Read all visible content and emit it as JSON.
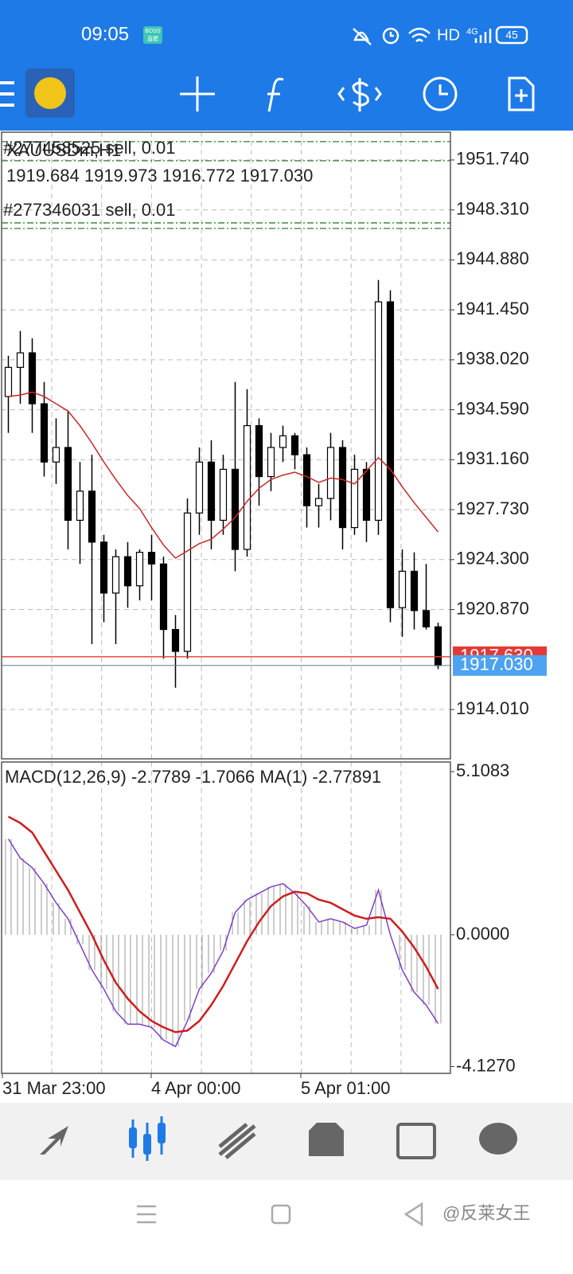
{
  "status_bar": {
    "time": "09:05",
    "badge_top": "BOSS",
    "badge_bottom": "直聘",
    "network": "HD",
    "cell": "4G",
    "battery": "45"
  },
  "chart_data": [
    {
      "type": "candlestick",
      "symbol": "XAUUSDm,H1",
      "ohlc_label": "1919.684 1919.973 1916.772 1917.030",
      "orders": [
        "#277458525 sell, 0.01",
        "#277346031 sell, 0.01"
      ],
      "order_lines": [
        1953.0,
        1951.69,
        1947.42,
        1947.04
      ],
      "order_line_color": "#2e7d32",
      "ask": {
        "value": 1917.63,
        "label": "1917.630"
      },
      "ask_color": "#e53935",
      "bid": {
        "value": 1917.03,
        "label": "1917.030"
      },
      "bid_color": "#4da3f0",
      "ylim": [
        1910.62,
        1953.65
      ],
      "yticks": [
        {
          "value": 1951.74,
          "label": "1951.740"
        },
        {
          "value": 1948.31,
          "label": "1948.310"
        },
        {
          "value": 1944.88,
          "label": "1944.880"
        },
        {
          "value": 1941.45,
          "label": "1941.450"
        },
        {
          "value": 1938.02,
          "label": "1938.020"
        },
        {
          "value": 1934.59,
          "label": "1934.590"
        },
        {
          "value": 1931.16,
          "label": "1931.160"
        },
        {
          "value": 1927.73,
          "label": "1927.730"
        },
        {
          "value": 1924.3,
          "label": "1924.300"
        },
        {
          "value": 1920.87,
          "label": "1920.870"
        },
        {
          "value": 1914.01,
          "label": "1914.010"
        }
      ],
      "grid": true,
      "candles": [
        [
          1935.5,
          1938.3,
          1933,
          1937.5
        ],
        [
          1937.5,
          1940,
          1935,
          1938.5
        ],
        [
          1938.5,
          1939.5,
          1933,
          1935
        ],
        [
          1935,
          1936.5,
          1930,
          1931
        ],
        [
          1931,
          1934,
          1929.5,
          1932
        ],
        [
          1932,
          1934.5,
          1925,
          1927
        ],
        [
          1927,
          1931,
          1924,
          1929
        ],
        [
          1929,
          1931.5,
          1918.5,
          1925.5
        ],
        [
          1925.5,
          1926,
          1920,
          1922
        ],
        [
          1922,
          1925,
          1918.5,
          1924.5
        ],
        [
          1924.5,
          1925.5,
          1921,
          1922.5
        ],
        [
          1922.5,
          1925,
          1921.5,
          1924.8
        ],
        [
          1924.8,
          1926,
          1921.5,
          1924
        ],
        [
          1924,
          1924.5,
          1917.5,
          1919.5
        ],
        [
          1919.5,
          1920.5,
          1915.5,
          1918
        ],
        [
          1918,
          1928.5,
          1917.5,
          1927.5
        ],
        [
          1927.5,
          1932,
          1926,
          1931
        ],
        [
          1931,
          1932.5,
          1925,
          1927
        ],
        [
          1927,
          1931.5,
          1926,
          1930.5
        ],
        [
          1930.5,
          1936.5,
          1923.5,
          1925
        ],
        [
          1925,
          1936,
          1924.5,
          1933.5
        ],
        [
          1933.5,
          1934,
          1928,
          1930
        ],
        [
          1930,
          1933,
          1929,
          1932
        ],
        [
          1932,
          1933.5,
          1931,
          1932.8
        ],
        [
          1932.8,
          1933,
          1930.5,
          1931.5
        ],
        [
          1931.5,
          1932,
          1926.5,
          1928
        ],
        [
          1928,
          1929.5,
          1926.5,
          1928.5
        ],
        [
          1928.5,
          1933,
          1927,
          1932
        ],
        [
          1932,
          1932.5,
          1925,
          1926.5
        ],
        [
          1926.5,
          1931.5,
          1926,
          1930.5
        ],
        [
          1930.5,
          1931,
          1925.5,
          1927
        ],
        [
          1927,
          1943.5,
          1926,
          1942
        ],
        [
          1942,
          1942.8,
          1920,
          1921
        ],
        [
          1921,
          1925,
          1919,
          1923.5
        ],
        [
          1923.5,
          1924.8,
          1919.5,
          1920.8
        ],
        [
          1920.8,
          1924,
          1919.5,
          1919.684
        ],
        [
          1919.684,
          1919.973,
          1916.772,
          1917.03
        ]
      ],
      "ma": {
        "color": "#c62828",
        "values": [
          1935.5,
          1935.6,
          1935.8,
          1935.5,
          1935,
          1934.5,
          1933.5,
          1932.3,
          1931,
          1929.8,
          1928.7,
          1927.8,
          1926.5,
          1925.3,
          1924.4,
          1924.9,
          1925.4,
          1925.7,
          1926.4,
          1927.2,
          1928.3,
          1929.2,
          1929.8,
          1930.1,
          1930.3,
          1930,
          1929.6,
          1929.9,
          1929.8,
          1929.5,
          1930.4,
          1931.3,
          1930.5,
          1929.3,
          1928.2,
          1927.2,
          1926.2
        ]
      },
      "x_labels": [
        "31 Mar 23:00",
        "4 Apr 00:00",
        "5 Apr 01:00"
      ]
    },
    {
      "type": "macd",
      "title": "MACD(12,26,9) -2.7789 -1.7066 MA(1) -2.77891",
      "ylim": [
        -4.34,
        5.41
      ],
      "yticks": [
        5.1083,
        {
          "value": 0,
          "label": "0.0000"
        },
        {
          "value": -4.127,
          "label": "-4.1270"
        }
      ],
      "series": [
        {
          "color": "#7e3fc4",
          "values": [
            3.0,
            2.4,
            2.1,
            1.6,
            1.0,
            0.5,
            -0.3,
            -1.1,
            -1.7,
            -2.4,
            -2.8,
            -2.8,
            -2.9,
            -3.3,
            -3.5,
            -2.7,
            -1.7,
            -1.2,
            -0.5,
            0.7,
            1.1,
            1.3,
            1.5,
            1.6,
            1.3,
            0.9,
            0.4,
            0.5,
            0.4,
            0.2,
            0.3,
            1.4,
            0.0,
            -1.1,
            -1.8,
            -2.2,
            -2.78
          ]
        },
        {
          "color": "#cc1f1f",
          "values": [
            3.7,
            3.5,
            3.2,
            2.6,
            2.0,
            1.4,
            0.7,
            0.0,
            -0.8,
            -1.5,
            -2.0,
            -2.4,
            -2.7,
            -2.9,
            -3.05,
            -3.0,
            -2.7,
            -2.2,
            -1.6,
            -0.9,
            -0.2,
            0.4,
            0.9,
            1.2,
            1.35,
            1.3,
            1.1,
            1.0,
            0.8,
            0.6,
            0.5,
            0.55,
            0.5,
            0.1,
            -0.4,
            -1.0,
            -1.7
          ]
        }
      ]
    }
  ],
  "watermark": "@反莱女王"
}
